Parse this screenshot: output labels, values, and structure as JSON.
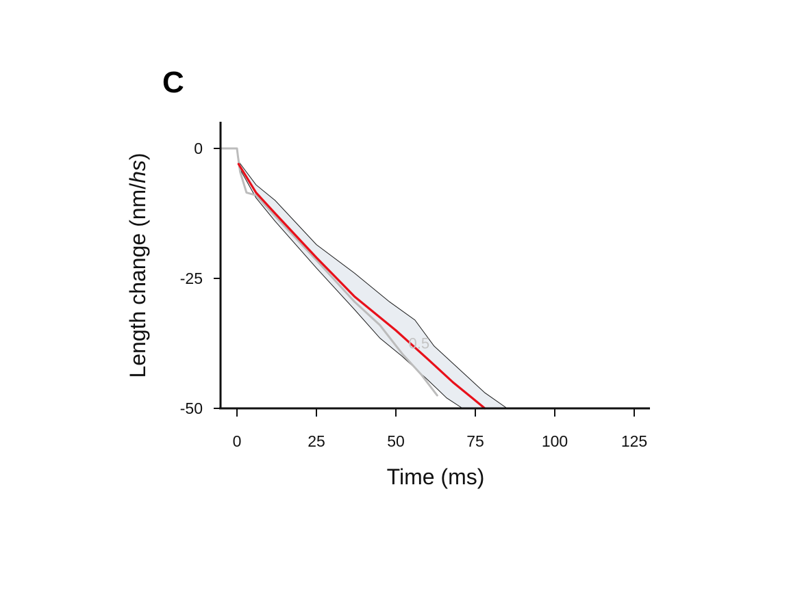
{
  "chart_data": {
    "type": "line",
    "panel_label": "C",
    "title": "",
    "xlabel": "Time (ms)",
    "ylabel_parts": [
      "Length change (nm/",
      "hs",
      ")"
    ],
    "xlim": [
      -10,
      130
    ],
    "ylim": [
      -50,
      5
    ],
    "xticks": [
      0,
      25,
      50,
      75,
      100,
      125
    ],
    "yticks": [
      0,
      -25,
      -50
    ],
    "annotation": "0.5",
    "annotation_pos": [
      54,
      -38.5
    ],
    "series": [
      {
        "name": "mean",
        "color": "#e8101a",
        "x": [
          0.5,
          6,
          12,
          25,
          37,
          50,
          60,
          68,
          74,
          78
        ],
        "y": [
          -3.0,
          -8.5,
          -12.5,
          -21.0,
          -28.5,
          -35.0,
          -40.5,
          -45.0,
          -48.0,
          -50.0
        ]
      },
      {
        "name": "gray trace",
        "color": "#bcbcbc",
        "x": [
          -5,
          0,
          0.3,
          1,
          3,
          6,
          12,
          25,
          37,
          45,
          52,
          58,
          63
        ],
        "y": [
          0,
          0,
          -1.5,
          -4.5,
          -8.5,
          -9.0,
          -13.0,
          -21.5,
          -29.5,
          -34.0,
          -39.5,
          -43.5,
          -47.5
        ]
      }
    ],
    "band": {
      "name": "error band",
      "fill": "#e9edf2",
      "stroke": "#1a1a1a",
      "upper": {
        "x": [
          0.5,
          6,
          12,
          25,
          37,
          48,
          56,
          62,
          70,
          78,
          85
        ],
        "y": [
          -2.5,
          -7.0,
          -10.0,
          -18.5,
          -24.0,
          -29.5,
          -33.0,
          -38.0,
          -42.5,
          -47.0,
          -50.0
        ]
      },
      "lower": {
        "x": [
          0.5,
          6,
          12,
          25,
          37,
          45,
          52,
          60,
          66,
          71
        ],
        "y": [
          -3.5,
          -9.5,
          -14.0,
          -23.0,
          -31.0,
          -36.5,
          -40.0,
          -44.5,
          -48.0,
          -50.0
        ]
      }
    }
  }
}
